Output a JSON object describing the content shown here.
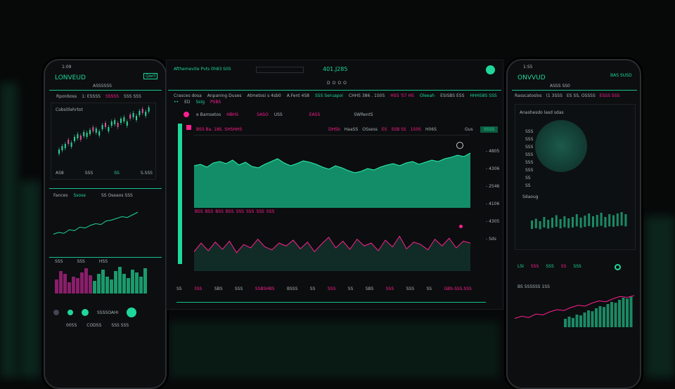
{
  "colors": {
    "accent_green": "#1fd79a",
    "accent_pink": "#ff1f8f",
    "background": "#070909"
  },
  "center": {
    "title": "Afthemevite Pvts 0h83 S0S",
    "price": "401.J285",
    "search": "",
    "nav_icons": [
      "D",
      "O",
      "O",
      "O"
    ],
    "stats": [
      "Crasces dosa",
      "Anpaning Duses",
      "Atmetosi s 4sb0",
      "A.Fent 4S8",
      "SSS Seruapoi",
      "CHHS 386 . 1S0S",
      "HSS 'S7 HS",
      "Oleeah",
      "ESISBS ESS",
      "HHHS8S SSS",
      "••",
      "ED",
      "SsIg",
      "PSBS"
    ],
    "legend": [
      "e Bamsetos",
      "HBHS",
      "SASO",
      "USS",
      "EASS",
      "SWRentS"
    ],
    "chart_header": [
      "BSS Ba. 18S. SHSHHS",
      "DHSb",
      "HaaSS",
      "OSsess",
      "ES",
      "SSB SS",
      "1S0S",
      "H06S",
      "Gus"
    ],
    "badge": "SSSS",
    "mid_labels": [
      "BSS",
      "BSS",
      "BSS",
      "BSS",
      "SSS",
      "SSS",
      "SSS",
      "SSS"
    ],
    "right_axis": [
      "- 4805",
      "- 4306",
      "- 2546",
      "- 4106",
      "- 4305",
      "- Sds"
    ],
    "bottom_axis": [
      "SS",
      "3SS",
      "SBS",
      "SSS",
      "SSBSHBS",
      "BSSS",
      "SS",
      "SSS",
      "SS",
      "SBS",
      "SSS",
      "SSS",
      "SS",
      "GBS-SSS.SSS"
    ],
    "area_chart": {
      "type": "area",
      "values": [
        60,
        62,
        58,
        64,
        66,
        63,
        68,
        61,
        65,
        59,
        57,
        62,
        66,
        70,
        64,
        60,
        63,
        67,
        65,
        62,
        58,
        55,
        60,
        57,
        53,
        50,
        52,
        56,
        54,
        58,
        61,
        63,
        60,
        64,
        66,
        62,
        65,
        68,
        66,
        70,
        72,
        75,
        73,
        78
      ]
    },
    "line_chart": {
      "type": "line",
      "values": [
        40,
        58,
        42,
        60,
        45,
        62,
        38,
        55,
        48,
        66,
        50,
        44,
        58,
        52,
        64,
        46,
        60,
        40,
        56,
        70,
        48,
        62,
        45,
        66,
        52,
        58,
        42,
        64,
        50,
        72,
        46,
        60,
        55,
        44,
        66,
        52,
        68,
        48,
        62,
        58
      ]
    }
  },
  "left_phone": {
    "time": "1:09",
    "logo": "LONVEUD",
    "badge": "Qwrt",
    "subtitle": "ASSSSSS",
    "stats": [
      "Rponboss",
      "1: ESSSS",
      "SSSSS",
      "SSS SSS"
    ],
    "chart_title": "Cobsitlehrtot",
    "axis": [
      "AS8",
      "SSS",
      "SS",
      "S.SSS"
    ],
    "section2": [
      "Fances",
      "Ssose",
      "SS Oseaos SSS"
    ],
    "section3": [
      "SSS",
      "SSS",
      "HSS"
    ],
    "footer": [
      "SSSSOAHI",
      "005S",
      "CODSS",
      "SSS SSS"
    ],
    "candles": [
      20,
      25,
      28,
      34,
      30,
      38,
      42,
      40,
      45,
      44,
      48,
      52,
      50,
      46,
      55,
      58,
      52,
      60,
      62,
      58,
      64,
      66,
      60,
      70,
      72,
      68,
      75,
      78,
      74,
      80
    ],
    "mini_line": [
      10,
      12,
      11,
      15,
      14,
      18,
      17,
      20,
      22,
      21,
      25,
      26,
      28,
      30,
      29,
      32,
      35
    ],
    "bars": [
      50,
      80,
      70,
      40,
      60,
      55,
      75,
      90,
      65,
      45,
      70,
      85,
      60,
      50,
      80,
      95,
      70,
      55,
      85,
      75,
      60,
      90
    ]
  },
  "right_phone": {
    "time": "1:S5",
    "logo": "ONVVUD",
    "badge": "BAS SUSD",
    "subtitle": "ASSS SS0",
    "stats": [
      "Rasscatoslos",
      "(1 3SSS",
      "ES SS, OSSSS",
      "ESSS SSS"
    ],
    "chart_title": "Anashesdo lasd sdas",
    "axis": [
      "SSS",
      "SSS",
      "SSS",
      "SSS",
      "SSS",
      "SSS",
      "SS",
      "SS"
    ],
    "section2": "Sdaoug",
    "row": [
      "LSI",
      "SSS",
      "SSS",
      "SS",
      "SSS"
    ],
    "section3": "BS SSSSSS 1SS",
    "bars": [
      40,
      45,
      38,
      50,
      42,
      48,
      55,
      44,
      52,
      46,
      50,
      58,
      48,
      54,
      60,
      52,
      56,
      62,
      50,
      58,
      55,
      60,
      64,
      58
    ],
    "bottom": [
      20,
      25,
      22,
      30,
      28,
      35,
      40,
      38,
      45,
      50,
      48,
      55,
      60,
      58,
      65,
      70,
      68,
      72
    ]
  }
}
